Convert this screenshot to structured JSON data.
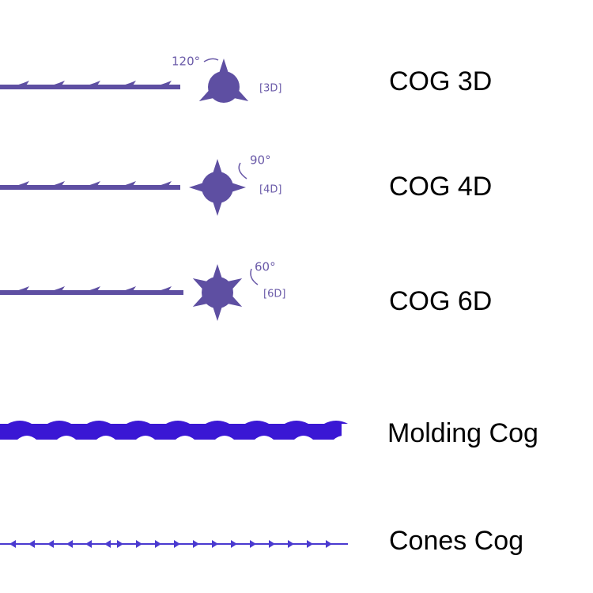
{
  "items": [
    {
      "angle": "120°",
      "tag": "[3D]",
      "label": "COG 3D"
    },
    {
      "angle": "90°",
      "tag": "[4D]",
      "label": "COG 4D"
    },
    {
      "angle": "60°",
      "tag": "[6D]",
      "label": "COG 6D"
    },
    {
      "label": "Molding Cog"
    },
    {
      "label": "Cones Cog"
    }
  ]
}
